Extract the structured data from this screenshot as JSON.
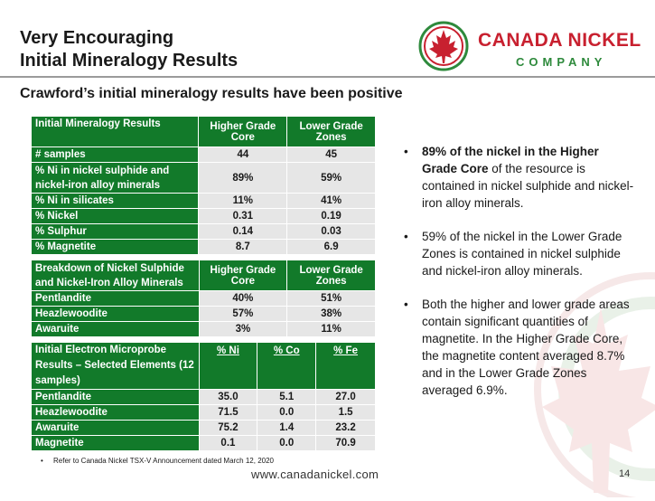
{
  "title_line1": "Very Encouraging",
  "title_line2": "Initial Mineralogy Results",
  "logo": {
    "name": "CANADA NICKEL",
    "company": "COMPANY",
    "icon": "maple-leaf-icon",
    "red": "#c8202f",
    "green": "#2e8a3c"
  },
  "subtitle": "Crawford’s initial mineralogy results have been positive",
  "table1": {
    "headers": [
      "Initial Mineralogy Results",
      "Higher Grade Core",
      "Lower Grade Zones"
    ],
    "rows": [
      {
        "label": "# samples",
        "values": [
          "44",
          "45"
        ]
      },
      {
        "label": "% Ni in nickel sulphide and nickel-iron alloy minerals",
        "values": [
          "89%",
          "59%"
        ]
      },
      {
        "label": "% Ni in silicates",
        "values": [
          "11%",
          "41%"
        ]
      },
      {
        "label": "% Nickel",
        "values": [
          "0.31",
          "0.19"
        ]
      },
      {
        "label": "% Sulphur",
        "values": [
          "0.14",
          "0.03"
        ]
      },
      {
        "label": "% Magnetite",
        "values": [
          "8.7",
          "6.9"
        ]
      }
    ]
  },
  "table2": {
    "headers": [
      "Breakdown of Nickel Sulphide and Nickel-Iron Alloy Minerals",
      "Higher Grade Core",
      "Lower Grade Zones"
    ],
    "rows": [
      {
        "label": "Pentlandite",
        "values": [
          "40%",
          "51%"
        ]
      },
      {
        "label": "Heazlewoodite",
        "values": [
          "57%",
          "38%"
        ]
      },
      {
        "label": "Awaruite",
        "values": [
          "3%",
          "11%"
        ]
      }
    ]
  },
  "table3": {
    "headers": [
      "Initial Electron Microprobe Results – Selected Elements (12 samples)",
      "% Ni",
      "% Co",
      "% Fe"
    ],
    "rows": [
      {
        "label": "Pentlandite",
        "values": [
          "35.0",
          "5.1",
          "27.0"
        ]
      },
      {
        "label": "Heazlewoodite",
        "values": [
          "71.5",
          "0.0",
          "1.5"
        ]
      },
      {
        "label": "Awaruite",
        "values": [
          "75.2",
          "1.4",
          "23.2"
        ]
      },
      {
        "label": "Magnetite",
        "values": [
          "0.1",
          "0.0",
          "70.9"
        ]
      }
    ]
  },
  "bullets": {
    "b1_bold": "89% of the nickel in the Higher Grade Core",
    "b1_rest": " of the resource is contained in nickel sulphide and nickel-iron alloy minerals.",
    "b2": "59% of the nickel in the Lower Grade Zones is contained in nickel sulphide and nickel-iron alloy minerals.",
    "b3": "Both the higher and lower grade areas contain significant quantities of magnetite.  In the Higher Grade Core, the magnetite content averaged 8.7% and in the Lower Grade Zones averaged 6.9%."
  },
  "footnote": "Refer to Canada Nickel TSX-V Announcement dated March 12, 2020",
  "website": "www.canadanickel.com",
  "page_number": "14",
  "colors": {
    "table_header": "#127a2a",
    "table_cell": "#e6e6e6",
    "watermark": "#eaf1ea"
  }
}
